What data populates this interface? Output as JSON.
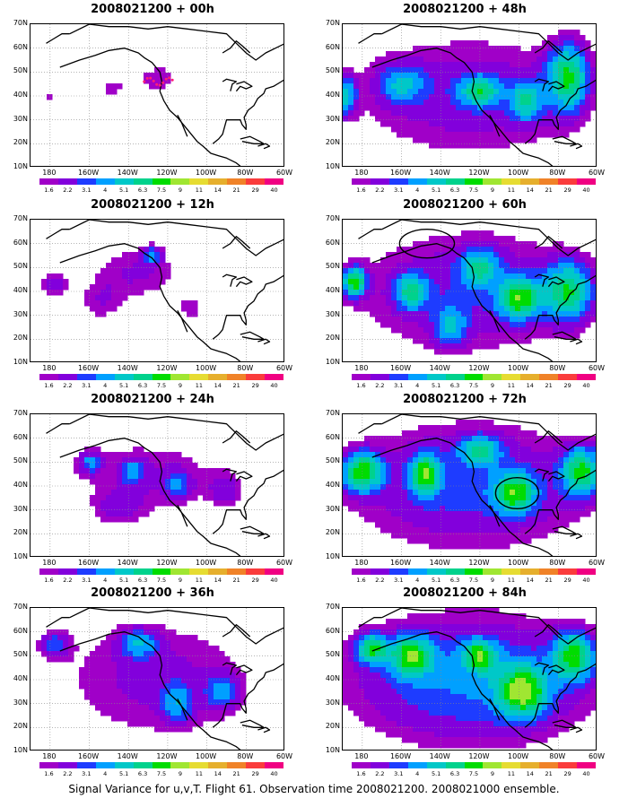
{
  "caption": "Signal Variance for u,v,T. Flight 61. Observation time 2008021200. 2008021000 ensemble.",
  "axis_labels": {
    "lat": [
      "70N",
      "60N",
      "50N",
      "40N",
      "30N",
      "20N",
      "10N"
    ],
    "lon": [
      "180",
      "160W",
      "140W",
      "120W",
      "100W",
      "80W",
      "60W"
    ]
  },
  "colorbar": {
    "labels": [
      "1.6",
      "2.2",
      "3.1",
      "4",
      "5.1",
      "6.3",
      "7.5",
      "9",
      "11",
      "14",
      "21",
      "29",
      "40"
    ],
    "colors": [
      "#a000c8",
      "#8200dc",
      "#1e3cff",
      "#00a0ff",
      "#00c8c8",
      "#00d28c",
      "#00dc00",
      "#a0e632",
      "#e6dc32",
      "#e6af2d",
      "#f08228",
      "#fa3c3c",
      "#f00082"
    ]
  },
  "chart_data": [
    {
      "type": "heatmap",
      "title": "2008021200 + 00h",
      "xlim": [
        170,
        300
      ],
      "ylim": [
        10,
        70
      ],
      "blobs": [
        [
          235,
          47,
          14,
          9,
          2.0
        ],
        [
          212,
          43,
          7,
          6,
          1.8
        ],
        [
          180,
          40,
          6,
          6,
          1.7
        ],
        [
          222,
          21,
          3,
          4,
          1.5
        ],
        [
          196,
          50,
          5,
          3,
          1.2
        ]
      ],
      "circles": [],
      "target_dots": true
    },
    {
      "type": "heatmap",
      "title": "2008021200 + 12h",
      "xlim": [
        170,
        300
      ],
      "ylim": [
        10,
        70
      ],
      "blobs": [
        [
          225,
          48,
          25,
          14,
          2.3
        ],
        [
          182,
          43,
          8,
          8,
          2.4
        ],
        [
          232,
          55,
          5,
          4,
          2.8
        ],
        [
          252,
          32,
          10,
          9,
          1.6
        ],
        [
          205,
          35,
          12,
          10,
          1.7
        ],
        [
          272,
          40,
          10,
          10,
          1.4
        ]
      ],
      "circles": [],
      "target_dots": false
    },
    {
      "type": "heatmap",
      "title": "2008021200 + 24h",
      "xlim": [
        170,
        300
      ],
      "ylim": [
        10,
        70
      ],
      "blobs": [
        [
          230,
          45,
          45,
          18,
          2.2
        ],
        [
          200,
          50,
          6,
          5,
          3.0
        ],
        [
          222,
          46,
          6,
          5,
          2.8
        ],
        [
          245,
          40,
          7,
          6,
          2.6
        ],
        [
          270,
          38,
          10,
          8,
          2.0
        ],
        [
          215,
          30,
          15,
          8,
          1.8
        ]
      ],
      "circles": [],
      "target_dots": false
    },
    {
      "type": "heatmap",
      "title": "2008021200 + 36h",
      "xlim": [
        170,
        300
      ],
      "ylim": [
        10,
        70
      ],
      "blobs": [
        [
          235,
          40,
          60,
          30,
          2.5
        ],
        [
          225,
          55,
          10,
          6,
          3.4
        ],
        [
          268,
          35,
          8,
          7,
          3.2
        ],
        [
          182,
          55,
          8,
          6,
          2.8
        ],
        [
          245,
          30,
          8,
          8,
          3.0
        ]
      ],
      "circles": [],
      "target_dots": false
    },
    {
      "type": "heatmap",
      "title": "2008021200 + 48h",
      "xlim": [
        170,
        300
      ],
      "ylim": [
        10,
        70
      ],
      "blobs": [
        [
          235,
          40,
          70,
          30,
          2.8
        ],
        [
          285,
          48,
          10,
          14,
          6.5
        ],
        [
          240,
          42,
          10,
          6,
          5.0
        ],
        [
          264,
          38,
          8,
          8,
          4.5
        ],
        [
          200,
          45,
          12,
          8,
          3.5
        ],
        [
          172,
          40,
          5,
          8,
          4.5
        ]
      ],
      "circles": [],
      "target_dots": false
    },
    {
      "type": "heatmap",
      "title": "2008021200 + 60h",
      "xlim": [
        170,
        300
      ],
      "ylim": [
        10,
        70
      ],
      "blobs": [
        [
          235,
          40,
          70,
          30,
          3.0
        ],
        [
          176,
          44,
          6,
          6,
          7.0
        ],
        [
          260,
          37,
          10,
          8,
          6.5
        ],
        [
          285,
          40,
          12,
          12,
          6.0
        ],
        [
          205,
          40,
          8,
          7,
          4.8
        ],
        [
          240,
          50,
          10,
          8,
          4.2
        ],
        [
          225,
          25,
          8,
          8,
          3.5
        ]
      ],
      "circles": [
        [
          213,
          60,
          14,
          6
        ]
      ],
      "target_dots": false
    },
    {
      "type": "heatmap",
      "title": "2008021200 + 72h",
      "xlim": [
        170,
        300
      ],
      "ylim": [
        10,
        70
      ],
      "blobs": [
        [
          235,
          40,
          70,
          30,
          3.5
        ],
        [
          180,
          46,
          10,
          8,
          7.0
        ],
        [
          212,
          45,
          7,
          8,
          6.5
        ],
        [
          258,
          37,
          10,
          8,
          6.0
        ],
        [
          292,
          46,
          10,
          10,
          6.5
        ],
        [
          240,
          55,
          10,
          6,
          4.5
        ]
      ],
      "circles": [
        [
          259,
          37,
          11,
          6.5
        ]
      ],
      "target_dots": false
    },
    {
      "type": "heatmap",
      "title": "2008021200 + 84h",
      "xlim": [
        170,
        300
      ],
      "ylim": [
        10,
        70
      ],
      "blobs": [
        [
          235,
          40,
          70,
          30,
          4.2
        ],
        [
          262,
          35,
          12,
          10,
          7.0
        ],
        [
          205,
          50,
          10,
          8,
          6.5
        ],
        [
          185,
          53,
          8,
          6,
          6.0
        ],
        [
          288,
          50,
          10,
          10,
          6.5
        ],
        [
          240,
          50,
          8,
          6,
          6.0
        ]
      ],
      "circles": [],
      "target_dots": false
    }
  ]
}
